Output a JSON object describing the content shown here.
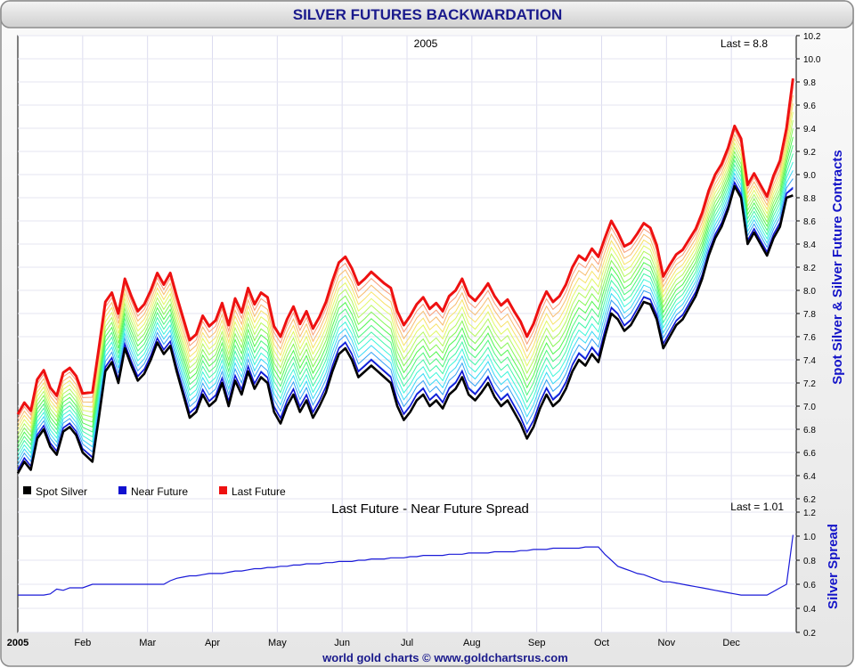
{
  "title": "SILVER FUTURES BACKWARDATION",
  "footer": "world gold charts © www.goldchartsrus.com",
  "colors": {
    "title_text": "#1a1a8c",
    "axis_title": "#1414c8",
    "spot": "#000000",
    "near": "#1010d0",
    "last": "#ee1111",
    "spread": "#1a1ad8",
    "border": "#9a9a9a"
  },
  "chart_data": [
    {
      "type": "line",
      "title": "2005",
      "annotation": "Last = 8.8",
      "ylabel": "Spot Silver & Silver Future Contracts",
      "ylim": [
        6.2,
        10.2
      ],
      "yticks": [
        "6.2",
        "6.4",
        "6.6",
        "6.8",
        "7.0",
        "7.2",
        "7.4",
        "7.6",
        "7.8",
        "8.0",
        "8.2",
        "8.4",
        "8.6",
        "8.8",
        "9.0",
        "9.2",
        "9.4",
        "9.6",
        "9.8",
        "10.0",
        "10.2"
      ],
      "xlim": [
        0,
        12
      ],
      "xticks": [
        {
          "label": "2005",
          "x": 0
        },
        {
          "label": "Feb",
          "x": 1
        },
        {
          "label": "Mar",
          "x": 2
        },
        {
          "label": "Apr",
          "x": 3
        },
        {
          "label": "May",
          "x": 4
        },
        {
          "label": "Jun",
          "x": 5
        },
        {
          "label": "Jul",
          "x": 6
        },
        {
          "label": "Aug",
          "x": 7
        },
        {
          "label": "Sep",
          "x": 8
        },
        {
          "label": "Oct",
          "x": 9
        },
        {
          "label": "Nov",
          "x": 10
        },
        {
          "label": "Dec",
          "x": 11
        }
      ],
      "grid": true,
      "legend": [
        "Spot Silver",
        "Near Future",
        "Last Future"
      ],
      "legend_position": "bottom-left",
      "spot_series": {
        "name": "Spot Silver",
        "x": [
          0.0,
          0.1,
          0.2,
          0.3,
          0.4,
          0.5,
          0.6,
          0.7,
          0.8,
          0.9,
          1.0,
          1.15,
          1.25,
          1.35,
          1.45,
          1.55,
          1.65,
          1.75,
          1.85,
          1.95,
          2.05,
          2.15,
          2.25,
          2.35,
          2.45,
          2.55,
          2.65,
          2.75,
          2.85,
          2.95,
          3.05,
          3.15,
          3.25,
          3.35,
          3.45,
          3.55,
          3.65,
          3.75,
          3.85,
          3.95,
          4.05,
          4.15,
          4.25,
          4.35,
          4.45,
          4.55,
          4.65,
          4.75,
          4.85,
          4.95,
          5.05,
          5.15,
          5.25,
          5.35,
          5.45,
          5.55,
          5.65,
          5.75,
          5.85,
          5.95,
          6.05,
          6.15,
          6.25,
          6.35,
          6.45,
          6.55,
          6.65,
          6.75,
          6.85,
          6.95,
          7.05,
          7.15,
          7.25,
          7.35,
          7.45,
          7.55,
          7.65,
          7.75,
          7.85,
          7.95,
          8.05,
          8.15,
          8.25,
          8.35,
          8.45,
          8.55,
          8.65,
          8.75,
          8.85,
          8.95,
          9.05,
          9.15,
          9.25,
          9.35,
          9.45,
          9.55,
          9.65,
          9.75,
          9.85,
          9.95,
          10.05,
          10.15,
          10.25,
          10.35,
          10.45,
          10.55,
          10.65,
          10.75,
          10.85,
          10.95,
          11.05,
          11.15,
          11.25,
          11.35,
          11.45,
          11.55,
          11.65,
          11.75,
          11.85,
          11.95
        ],
        "values": [
          6.42,
          6.52,
          6.45,
          6.72,
          6.8,
          6.65,
          6.58,
          6.78,
          6.82,
          6.75,
          6.6,
          6.52,
          6.9,
          7.3,
          7.38,
          7.2,
          7.5,
          7.35,
          7.22,
          7.28,
          7.4,
          7.55,
          7.45,
          7.52,
          7.3,
          7.1,
          6.9,
          6.95,
          7.1,
          7.0,
          7.05,
          7.2,
          7.0,
          7.22,
          7.1,
          7.3,
          7.15,
          7.25,
          7.2,
          6.95,
          6.85,
          7.0,
          7.1,
          6.95,
          7.05,
          6.9,
          7.0,
          7.12,
          7.3,
          7.45,
          7.5,
          7.4,
          7.25,
          7.3,
          7.35,
          7.3,
          7.25,
          7.2,
          7.0,
          6.88,
          6.95,
          7.05,
          7.1,
          7.0,
          7.05,
          6.98,
          7.1,
          7.15,
          7.25,
          7.1,
          7.05,
          7.12,
          7.2,
          7.08,
          7.0,
          7.05,
          6.95,
          6.85,
          6.72,
          6.82,
          6.98,
          7.1,
          7.0,
          7.05,
          7.15,
          7.3,
          7.4,
          7.35,
          7.45,
          7.38,
          7.6,
          7.8,
          7.75,
          7.65,
          7.7,
          7.8,
          7.9,
          7.88,
          7.75,
          7.5,
          7.6,
          7.7,
          7.75,
          7.85,
          7.95,
          8.1,
          8.3,
          8.45,
          8.55,
          8.7,
          8.9,
          8.8,
          8.4,
          8.5,
          8.4,
          8.3,
          8.45,
          8.55,
          8.8,
          8.82
        ]
      },
      "last_series": {
        "name": "Last Future",
        "x": [
          0.0,
          0.1,
          0.2,
          0.3,
          0.4,
          0.5,
          0.6,
          0.7,
          0.8,
          0.9,
          1.0,
          1.15,
          1.25,
          1.35,
          1.45,
          1.55,
          1.65,
          1.75,
          1.85,
          1.95,
          2.05,
          2.15,
          2.25,
          2.35,
          2.45,
          2.55,
          2.65,
          2.75,
          2.85,
          2.95,
          3.05,
          3.15,
          3.25,
          3.35,
          3.45,
          3.55,
          3.65,
          3.75,
          3.85,
          3.95,
          4.05,
          4.15,
          4.25,
          4.35,
          4.45,
          4.55,
          4.65,
          4.75,
          4.85,
          4.95,
          5.05,
          5.15,
          5.25,
          5.35,
          5.45,
          5.55,
          5.65,
          5.75,
          5.85,
          5.95,
          6.05,
          6.15,
          6.25,
          6.35,
          6.45,
          6.55,
          6.65,
          6.75,
          6.85,
          6.95,
          7.05,
          7.15,
          7.25,
          7.35,
          7.45,
          7.55,
          7.65,
          7.75,
          7.85,
          7.95,
          8.05,
          8.15,
          8.25,
          8.35,
          8.45,
          8.55,
          8.65,
          8.75,
          8.85,
          8.95,
          9.05,
          9.15,
          9.25,
          9.35,
          9.45,
          9.55,
          9.65,
          9.75,
          9.85,
          9.95,
          10.05,
          10.15,
          10.25,
          10.35,
          10.45,
          10.55,
          10.65,
          10.75,
          10.85,
          10.95,
          11.05,
          11.15,
          11.25,
          11.35,
          11.45,
          11.55,
          11.65,
          11.75,
          11.85,
          11.95
        ],
        "values": [
          6.93,
          7.03,
          6.96,
          7.23,
          7.31,
          7.16,
          7.09,
          7.29,
          7.33,
          7.26,
          7.11,
          7.12,
          7.5,
          7.9,
          7.98,
          7.8,
          8.1,
          7.95,
          7.82,
          7.88,
          8.0,
          8.15,
          8.05,
          8.15,
          7.95,
          7.76,
          7.57,
          7.62,
          7.78,
          7.69,
          7.74,
          7.89,
          7.7,
          7.93,
          7.81,
          8.02,
          7.88,
          7.98,
          7.94,
          7.69,
          7.6,
          7.75,
          7.86,
          7.71,
          7.82,
          7.67,
          7.77,
          7.9,
          8.08,
          8.24,
          8.29,
          8.19,
          8.05,
          8.1,
          8.16,
          8.11,
          8.06,
          8.02,
          7.82,
          7.7,
          7.78,
          7.88,
          7.94,
          7.84,
          7.89,
          7.82,
          7.95,
          8.0,
          8.1,
          7.96,
          7.91,
          7.98,
          8.06,
          7.95,
          7.87,
          7.92,
          7.82,
          7.73,
          7.6,
          7.71,
          7.87,
          7.99,
          7.9,
          7.95,
          8.05,
          8.2,
          8.3,
          8.26,
          8.36,
          8.29,
          8.45,
          8.6,
          8.5,
          8.38,
          8.41,
          8.49,
          8.58,
          8.54,
          8.39,
          8.12,
          8.22,
          8.31,
          8.35,
          8.44,
          8.53,
          8.67,
          8.86,
          9.0,
          9.09,
          9.23,
          9.42,
          9.31,
          8.91,
          9.01,
          8.91,
          8.81,
          8.99,
          9.12,
          9.4,
          9.83
        ]
      }
    },
    {
      "type": "line",
      "title": "Last Future - Near Future Spread",
      "annotation": "Last = 1.01",
      "ylabel": "Silver Spread",
      "ylim": [
        0.2,
        1.2
      ],
      "yticks": [
        "0.2",
        "0.4",
        "0.6",
        "0.8",
        "1.0",
        "1.2"
      ],
      "xlim": [
        0,
        12
      ],
      "grid": true,
      "series": [
        {
          "name": "",
          "x": [
            0.0,
            0.1,
            0.2,
            0.3,
            0.4,
            0.5,
            0.6,
            0.7,
            0.8,
            0.9,
            1.0,
            1.15,
            1.25,
            1.35,
            1.45,
            1.55,
            1.65,
            1.75,
            1.85,
            1.95,
            2.05,
            2.15,
            2.25,
            2.35,
            2.45,
            2.55,
            2.65,
            2.75,
            2.85,
            2.95,
            3.05,
            3.15,
            3.25,
            3.35,
            3.45,
            3.55,
            3.65,
            3.75,
            3.85,
            3.95,
            4.05,
            4.15,
            4.25,
            4.35,
            4.45,
            4.55,
            4.65,
            4.75,
            4.85,
            4.95,
            5.05,
            5.15,
            5.25,
            5.35,
            5.45,
            5.55,
            5.65,
            5.75,
            5.85,
            5.95,
            6.05,
            6.15,
            6.25,
            6.35,
            6.45,
            6.55,
            6.65,
            6.75,
            6.85,
            6.95,
            7.05,
            7.15,
            7.25,
            7.35,
            7.45,
            7.55,
            7.65,
            7.75,
            7.85,
            7.95,
            8.05,
            8.15,
            8.25,
            8.35,
            8.45,
            8.55,
            8.65,
            8.75,
            8.85,
            8.95,
            9.05,
            9.15,
            9.25,
            9.35,
            9.45,
            9.55,
            9.65,
            9.75,
            9.85,
            9.95,
            10.05,
            10.15,
            10.25,
            10.35,
            10.45,
            10.55,
            10.65,
            10.75,
            10.85,
            10.95,
            11.05,
            11.15,
            11.25,
            11.35,
            11.45,
            11.55,
            11.65,
            11.75,
            11.85,
            11.95
          ],
          "values": [
            0.51,
            0.51,
            0.51,
            0.51,
            0.51,
            0.52,
            0.56,
            0.55,
            0.57,
            0.57,
            0.57,
            0.6,
            0.6,
            0.6,
            0.6,
            0.6,
            0.6,
            0.6,
            0.6,
            0.6,
            0.6,
            0.6,
            0.6,
            0.63,
            0.65,
            0.66,
            0.67,
            0.67,
            0.68,
            0.69,
            0.69,
            0.69,
            0.7,
            0.71,
            0.71,
            0.72,
            0.73,
            0.73,
            0.74,
            0.74,
            0.75,
            0.75,
            0.76,
            0.76,
            0.77,
            0.77,
            0.77,
            0.78,
            0.78,
            0.79,
            0.79,
            0.79,
            0.8,
            0.8,
            0.81,
            0.81,
            0.81,
            0.82,
            0.82,
            0.82,
            0.83,
            0.83,
            0.84,
            0.84,
            0.84,
            0.84,
            0.85,
            0.85,
            0.85,
            0.86,
            0.86,
            0.86,
            0.86,
            0.87,
            0.87,
            0.87,
            0.87,
            0.88,
            0.88,
            0.89,
            0.89,
            0.89,
            0.9,
            0.9,
            0.9,
            0.9,
            0.9,
            0.91,
            0.91,
            0.91,
            0.85,
            0.8,
            0.75,
            0.73,
            0.71,
            0.69,
            0.68,
            0.66,
            0.64,
            0.62,
            0.62,
            0.61,
            0.6,
            0.59,
            0.58,
            0.57,
            0.56,
            0.55,
            0.54,
            0.53,
            0.52,
            0.51,
            0.51,
            0.51,
            0.51,
            0.51,
            0.54,
            0.57,
            0.6,
            1.01
          ]
        }
      ]
    }
  ]
}
